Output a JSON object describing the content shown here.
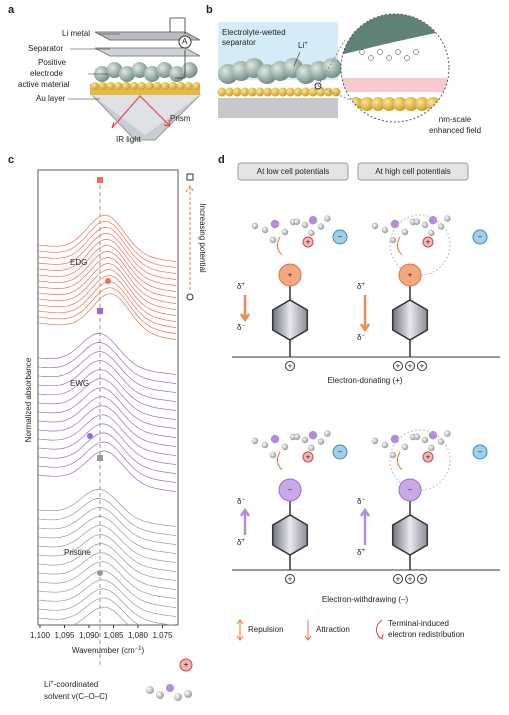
{
  "panel_a": {
    "label": "a",
    "li_metal": "Li metal",
    "separator": "Separator",
    "ammeter": "A",
    "positive_electrode": [
      "Positive",
      "electrode",
      "active material"
    ],
    "au_layer": "Au layer",
    "ir_light": "IR light",
    "prism": "Prism"
  },
  "panel_b": {
    "label": "b",
    "separator": [
      "Electrolyte-wetted",
      "separator"
    ],
    "li_ion": "Li",
    "li_charge": "+",
    "field": [
      "nm-scale",
      "enhanced field"
    ]
  },
  "panel_c": {
    "label": "c",
    "y_label": "Normalized absorbance",
    "x_label": "Wavenumber (cm",
    "x_label_exp": "−1",
    "x_label_end": ")",
    "x_ticks": [
      "1,100",
      "1,095",
      "1,090",
      "1,085",
      "1,080",
      "1,075"
    ],
    "series_labels": [
      "EDG",
      "EWG",
      "Pristine"
    ],
    "potential": "Increasing potential",
    "annotation": [
      "Li",
      "+",
      "-coordinated",
      "solvent ν(C–O–C)"
    ]
  },
  "panel_d": {
    "label": "d",
    "headers": [
      "At low cell potentials",
      "At high cell potentials"
    ],
    "delta": "δ",
    "plus": "+",
    "minus": "−",
    "donating": "Electron-donating (+)",
    "withdrawing": "Electron-withdrawing (–)",
    "legend": [
      "Repulsion",
      "Attraction",
      "Terminal-induced",
      "electron redistribution"
    ]
  }
}
